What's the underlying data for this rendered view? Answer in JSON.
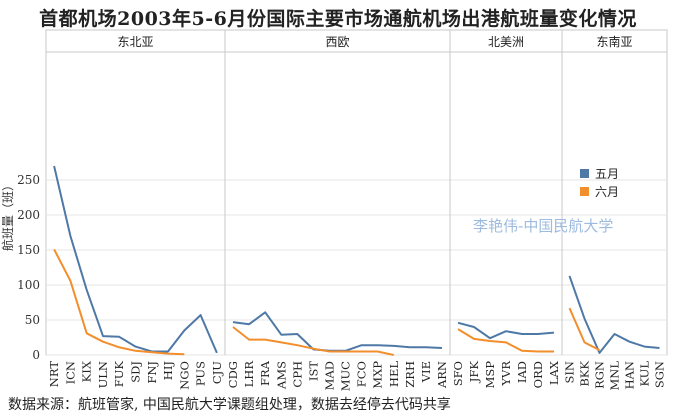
{
  "title": "首都机场2003年5-6月份国际主要市场通航机场出港航班量变化情况",
  "source_note": "数据来源：航班管家, 中国民航大学课题组处理，数据去经停去代码共享",
  "watermark": "李艳伟-中国民航大学",
  "colors": {
    "may": "#4e79a7",
    "june": "#f28e2b",
    "grid": "#e6e6e6",
    "frame": "#c8c8c8"
  },
  "chart_data": {
    "type": "line",
    "ylabel": "航班量（班）",
    "ylim": [
      0,
      300
    ],
    "yticks": [
      0,
      50,
      100,
      150,
      200,
      250
    ],
    "legend": {
      "placement": "right",
      "entries": [
        "五月",
        "六月"
      ]
    },
    "panels": [
      {
        "region": "东北亚",
        "categories": [
          "NRT",
          "ICN",
          "KIX",
          "ULN",
          "FUK",
          "SDJ",
          "FNJ",
          "HIJ",
          "NGO",
          "PUS",
          "CJU"
        ],
        "series": [
          {
            "name": "五月",
            "values": [
              270,
              170,
              93,
              27,
              26,
              12,
              5,
              5,
              35,
              57,
              3
            ]
          },
          {
            "name": "六月",
            "values": [
              151,
              106,
              31,
              19,
              11,
              6,
              4,
              2,
              1,
              null,
              null
            ]
          }
        ]
      },
      {
        "region": "西欧",
        "categories": [
          "CDG",
          "LHR",
          "FRA",
          "AMS",
          "CPH",
          "IST",
          "MAD",
          "MUC",
          "FCO",
          "MXP",
          "HEL",
          "ZRH",
          "VIE",
          "ARN"
        ],
        "series": [
          {
            "name": "五月",
            "values": [
              47,
              44,
              61,
              29,
              30,
              8,
              6,
              6,
              14,
              14,
              13,
              11,
              11,
              10
            ]
          },
          {
            "name": "六月",
            "values": [
              40,
              22,
              22,
              18,
              14,
              9,
              5,
              5,
              5,
              5,
              0,
              null,
              null,
              null
            ]
          }
        ]
      },
      {
        "region": "北美洲",
        "categories": [
          "SFO",
          "JFK",
          "MSP",
          "YVR",
          "IAD",
          "ORD",
          "LAX"
        ],
        "series": [
          {
            "name": "五月",
            "values": [
              46,
              40,
              24,
              34,
              30,
              30,
              32
            ]
          },
          {
            "name": "六月",
            "values": [
              37,
              23,
              20,
              18,
              6,
              5,
              5
            ]
          }
        ]
      },
      {
        "region": "东南亚",
        "categories": [
          "SIN",
          "BKK",
          "RGN",
          "MNL",
          "HAN",
          "KUL",
          "SGN"
        ],
        "series": [
          {
            "name": "五月",
            "values": [
              113,
              52,
              3,
              30,
              19,
              12,
              10
            ]
          },
          {
            "name": "六月",
            "values": [
              67,
              18,
              7,
              null,
              null,
              null,
              null
            ]
          }
        ]
      }
    ]
  }
}
